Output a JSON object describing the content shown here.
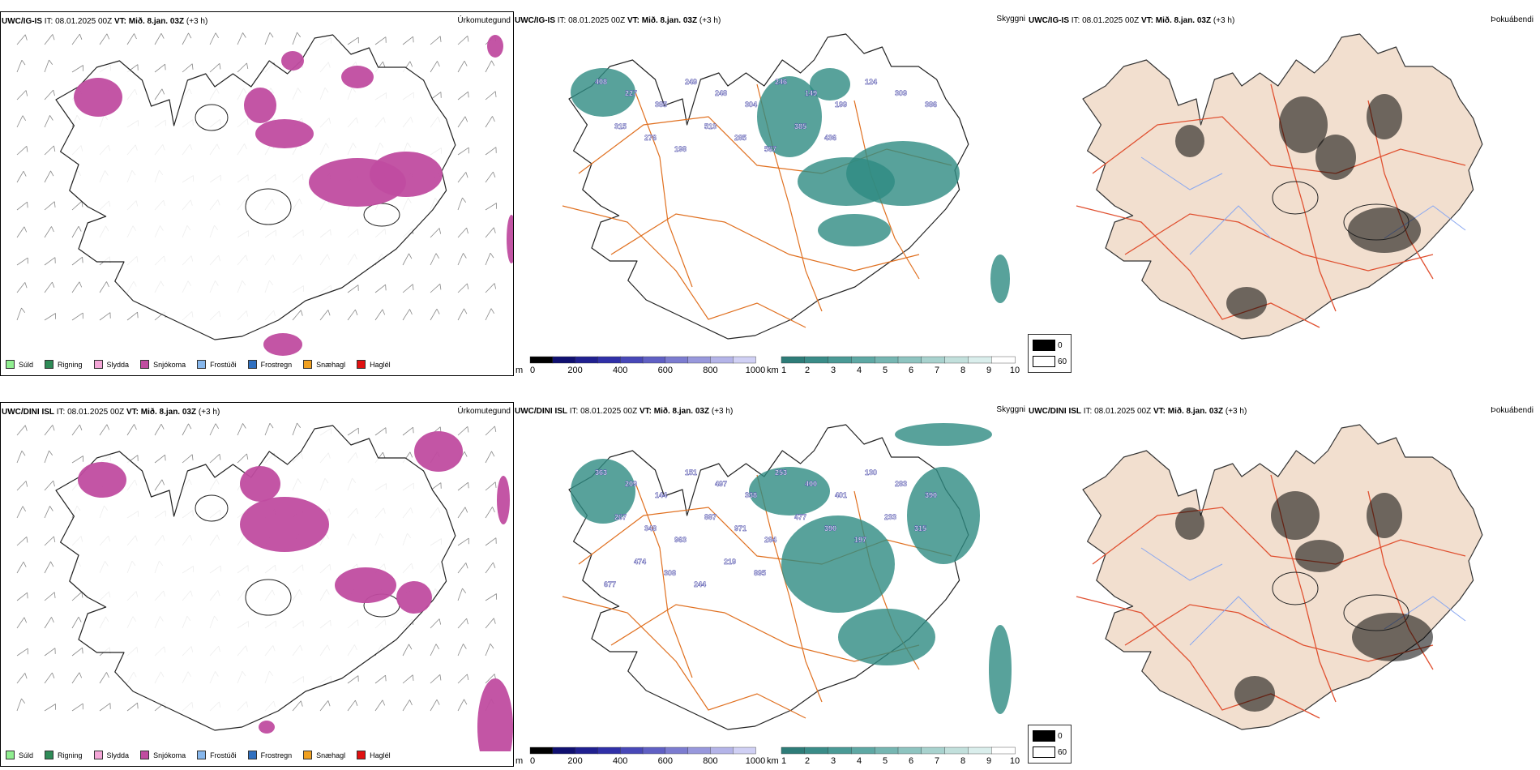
{
  "rows": [
    {
      "precip": {
        "model": "UWC/IG-IS",
        "it": "IT: 08.01.2025 00Z",
        "vt_bold": "VT: Mið. 8.jan. 03Z",
        "vt_rel": "(+3 h)",
        "right_label": "Úrkomutegund"
      },
      "vis": {
        "model": "UWC/IG-IS",
        "it": "IT: 08.01.2025 00Z",
        "vt_bold": "VT: Mið. 8.jan. 03Z",
        "vt_rel": "(+3 h)",
        "right_label": "Skyggni"
      },
      "fog": {
        "model": "UWC/IG-IS",
        "it": "IT: 08.01.2025 00Z",
        "vt_bold": "VT: Mið. 8.jan. 03Z",
        "vt_rel": "(+3 h)",
        "right_label": "Þokuábendi"
      },
      "ceiling_values": [
        "408",
        "227",
        "385",
        "249",
        "248",
        "304",
        "246",
        "149",
        "199",
        "124",
        "309",
        "386",
        "315",
        "276",
        "198",
        "513",
        "285",
        "567",
        "385",
        "436"
      ]
    },
    {
      "precip": {
        "model": "UWC/DINI ISL",
        "it": "IT: 08.01.2025 00Z",
        "vt_bold": "VT: Mið. 8.jan. 03Z",
        "vt_rel": "(+3 h)",
        "right_label": "Úrkomutegund"
      },
      "vis": {
        "model": "UWC/DINI ISL",
        "it": "IT: 08.01.2025 00Z",
        "vt_bold": "VT: Mið. 8.jan. 03Z",
        "vt_rel": "(+3 h)",
        "right_label": "Skyggni"
      },
      "fog": {
        "model": "UWC/DINI ISL",
        "it": "IT: 08.01.2025 00Z",
        "vt_bold": "VT: Mið. 8.jan. 03Z",
        "vt_rel": "(+3 h)",
        "right_label": "Þokuábendi"
      },
      "ceiling_values": [
        "363",
        "209",
        "144",
        "151",
        "497",
        "338",
        "253",
        "400",
        "401",
        "130",
        "283",
        "390",
        "267",
        "348",
        "963",
        "887",
        "971",
        "284",
        "477",
        "390",
        "197",
        "233",
        "315",
        "677",
        "474",
        "308",
        "244",
        "219",
        "895"
      ]
    }
  ],
  "precip_legend": [
    {
      "label": "Súld",
      "color": "#90ee90"
    },
    {
      "label": "Rigning",
      "color": "#2e8b57"
    },
    {
      "label": "Slydda",
      "color": "#f4a6d7"
    },
    {
      "label": "Snjókoma",
      "color": "#c04ca0"
    },
    {
      "label": "Frostúði",
      "color": "#87b7ec"
    },
    {
      "label": "Frostregn",
      "color": "#3070c0"
    },
    {
      "label": "Snæhagl",
      "color": "#f0a020"
    },
    {
      "label": "Haglél",
      "color": "#e01010"
    }
  ],
  "ceiling_bar": {
    "unit": "m",
    "ticks": [
      "0",
      "200",
      "400",
      "600",
      "800",
      "1000"
    ]
  },
  "visibility_bar": {
    "unit": "km",
    "ticks": [
      "1",
      "2",
      "3",
      "4",
      "5",
      "6",
      "7",
      "8",
      "9",
      "10"
    ]
  },
  "fog_legend": {
    "high": "0",
    "low": "60"
  },
  "colors": {
    "snow": "#c04ca0",
    "vis": "#2e8b82",
    "ceiling": "#2a2a9a",
    "road": "#e07020",
    "fogland": "#f2dfcf",
    "fogroad": "#e05030",
    "river": "#8aa8f0"
  }
}
